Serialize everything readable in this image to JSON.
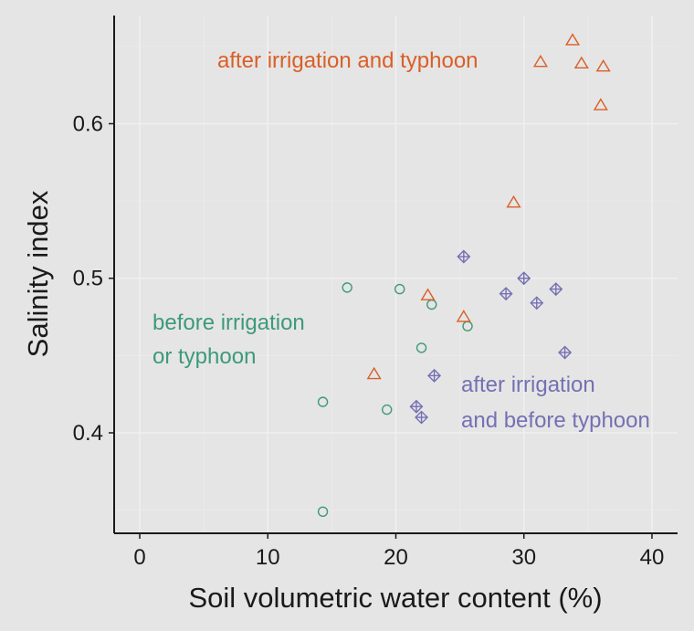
{
  "chart_data": {
    "type": "scatter",
    "title": "",
    "xlabel": "Soil volumetric water content (%)",
    "ylabel": "Salinity index",
    "xlim": [
      -2,
      42
    ],
    "ylim": [
      0.335,
      0.67
    ],
    "x_ticks": [
      0,
      10,
      20,
      30,
      40
    ],
    "x_tick_labels": [
      "0",
      "10",
      "20",
      "30",
      "40"
    ],
    "y_ticks": [
      0.4,
      0.5,
      0.6
    ],
    "y_tick_labels": [
      "0.4",
      "0.5",
      "0.6"
    ],
    "y_minor_ticks": [
      0.35,
      0.45,
      0.55,
      0.65
    ],
    "x_minor_ticks": [
      5,
      15,
      25,
      35
    ],
    "grid": true,
    "legend": "none",
    "series": [
      {
        "key": "before",
        "label_lines": [
          "before irrigation",
          "or typhoon"
        ],
        "marker": "circle",
        "color": "#3d9a78",
        "points": [
          {
            "x": 14.3,
            "y": 0.349
          },
          {
            "x": 14.3,
            "y": 0.42
          },
          {
            "x": 16.2,
            "y": 0.494
          },
          {
            "x": 19.3,
            "y": 0.415
          },
          {
            "x": 20.3,
            "y": 0.493
          },
          {
            "x": 22.0,
            "y": 0.455
          },
          {
            "x": 22.8,
            "y": 0.483
          },
          {
            "x": 25.6,
            "y": 0.469
          }
        ]
      },
      {
        "key": "after_irrigation",
        "label_lines": [
          "after irrigation",
          "and before typhoon"
        ],
        "marker": "diamond-plus",
        "color": "#7570b3",
        "points": [
          {
            "x": 21.6,
            "y": 0.417
          },
          {
            "x": 22.0,
            "y": 0.41
          },
          {
            "x": 23.0,
            "y": 0.437
          },
          {
            "x": 25.3,
            "y": 0.514
          },
          {
            "x": 28.6,
            "y": 0.49
          },
          {
            "x": 30.0,
            "y": 0.5
          },
          {
            "x": 31.0,
            "y": 0.484
          },
          {
            "x": 32.5,
            "y": 0.493
          },
          {
            "x": 33.2,
            "y": 0.452
          }
        ]
      },
      {
        "key": "after_both",
        "label_lines": [
          "after irrigation and typhoon"
        ],
        "marker": "triangle",
        "color": "#d95f27",
        "points": [
          {
            "x": 18.3,
            "y": 0.438
          },
          {
            "x": 22.5,
            "y": 0.489
          },
          {
            "x": 25.3,
            "y": 0.475
          },
          {
            "x": 29.2,
            "y": 0.549
          },
          {
            "x": 31.3,
            "y": 0.64
          },
          {
            "x": 33.8,
            "y": 0.654
          },
          {
            "x": 34.5,
            "y": 0.639
          },
          {
            "x": 36.0,
            "y": 0.612
          },
          {
            "x": 36.2,
            "y": 0.637
          }
        ]
      }
    ]
  }
}
